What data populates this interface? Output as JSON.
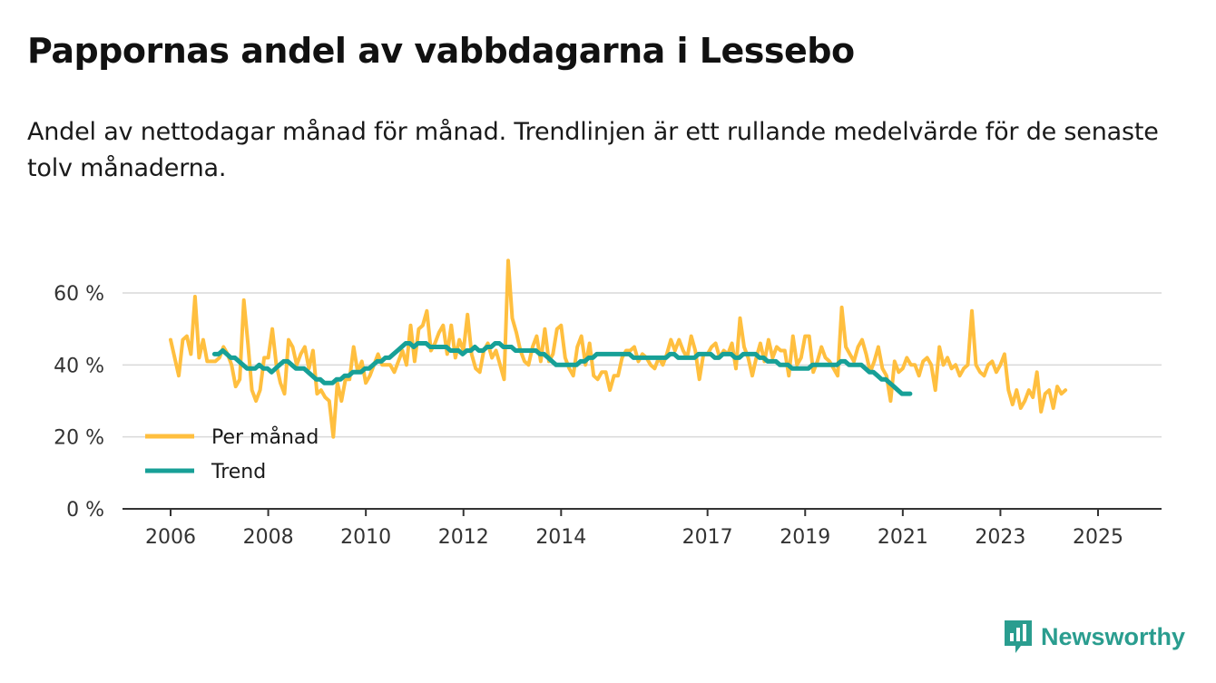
{
  "title": "Pappornas andel av vabbdagarna i Lessebo",
  "subtitle": "Andel av nettodagar månad för månad. Trendlinjen är ett rullande medelvärde för de senaste tolv månaderna.",
  "brand": "Newsworthy",
  "chart_data": {
    "type": "line",
    "title": "Pappornas andel av vabbdagarna i Lessebo",
    "xlabel": "",
    "ylabel": "",
    "ylim": [
      0,
      70
    ],
    "xlim": [
      2006.0,
      2025.5
    ],
    "y_ticks": [
      0,
      20,
      40,
      60
    ],
    "y_tick_labels": [
      "0 %",
      "20 %",
      "40 %",
      "60 %"
    ],
    "x_ticks": [
      2006,
      2008,
      2010,
      2012,
      2014,
      2017,
      2019,
      2021,
      2023,
      2025
    ],
    "x_tick_labels": [
      "2006",
      "2008",
      "2010",
      "2012",
      "2014",
      "2017",
      "2019",
      "2021",
      "2023",
      "2025"
    ],
    "grid": true,
    "legend_position": "lower-left",
    "series": [
      {
        "name": "Per månad",
        "color": "#ffbf3f",
        "x_start": 2006.0,
        "step": 0.08333,
        "values": [
          47,
          42,
          37,
          47,
          48,
          43,
          59,
          42,
          47,
          41,
          41,
          41,
          42,
          45,
          43,
          40,
          34,
          36,
          58,
          46,
          33,
          30,
          33,
          42,
          42,
          50,
          40,
          35,
          32,
          47,
          45,
          40,
          43,
          45,
          39,
          44,
          32,
          33,
          31,
          30,
          20,
          35,
          30,
          36,
          36,
          45,
          38,
          41,
          35,
          37,
          40,
          43,
          40,
          40,
          40,
          38,
          41,
          44,
          40,
          51,
          41,
          50,
          51,
          55,
          44,
          46,
          49,
          51,
          43,
          51,
          42,
          47,
          44,
          54,
          43,
          39,
          38,
          44,
          46,
          42,
          44,
          40,
          36,
          69,
          53,
          49,
          44,
          41,
          40,
          45,
          48,
          41,
          50,
          41,
          43,
          50,
          51,
          42,
          39,
          37,
          45,
          48,
          40,
          46,
          37,
          36,
          38,
          38,
          33,
          37,
          37,
          42,
          44,
          44,
          45,
          41,
          43,
          42,
          40,
          39,
          42,
          40,
          43,
          47,
          44,
          47,
          44,
          42,
          48,
          44,
          36,
          43,
          43,
          45,
          46,
          42,
          44,
          43,
          46,
          39,
          53,
          45,
          42,
          37,
          42,
          46,
          41,
          47,
          42,
          45,
          44,
          44,
          37,
          48,
          40,
          42,
          48,
          48,
          38,
          41,
          45,
          42,
          41,
          39,
          37,
          56,
          45,
          43,
          41,
          45,
          47,
          43,
          38,
          41,
          45,
          39,
          37,
          30,
          41,
          38,
          39,
          42,
          40,
          40,
          37,
          41,
          42,
          40,
          33,
          45,
          40,
          42,
          39,
          40,
          37,
          39,
          40,
          55,
          40,
          38,
          37,
          40,
          41,
          38,
          40,
          43,
          33,
          29,
          33,
          28,
          30,
          33,
          31,
          38,
          27,
          32,
          33,
          28,
          34,
          32,
          33
        ]
      },
      {
        "name": "Trend",
        "color": "#17a097",
        "x_start": 2006.9,
        "step": 0.08333,
        "values": [
          43,
          43,
          44,
          43,
          42,
          42,
          41,
          40,
          39,
          39,
          39,
          40,
          39,
          39,
          38,
          39,
          40,
          41,
          41,
          40,
          39,
          39,
          39,
          38,
          37,
          36,
          36,
          35,
          35,
          35,
          36,
          36,
          37,
          37,
          38,
          38,
          38,
          39,
          39,
          40,
          41,
          41,
          42,
          42,
          43,
          44,
          45,
          46,
          46,
          45,
          46,
          46,
          46,
          45,
          45,
          45,
          45,
          45,
          44,
          44,
          44,
          43,
          44,
          44,
          45,
          44,
          44,
          45,
          45,
          46,
          46,
          45,
          45,
          45,
          44,
          44,
          44,
          44,
          44,
          44,
          43,
          43,
          42,
          41,
          40,
          40,
          40,
          40,
          40,
          40,
          41,
          41,
          42,
          42,
          43,
          43,
          43,
          43,
          43,
          43,
          43,
          43,
          43,
          42,
          42,
          42,
          42,
          42,
          42,
          42,
          42,
          42,
          43,
          43,
          42,
          42,
          42,
          42,
          42,
          43,
          43,
          43,
          43,
          42,
          42,
          43,
          43,
          43,
          42,
          42,
          43,
          43,
          43,
          43,
          42,
          42,
          41,
          41,
          41,
          40,
          40,
          40,
          39,
          39,
          39,
          39,
          39,
          40,
          40,
          40,
          40,
          40,
          40,
          40,
          41,
          41,
          40,
          40,
          40,
          40,
          39,
          38,
          38,
          37,
          36,
          36,
          35,
          34,
          33,
          32,
          32,
          32
        ]
      }
    ]
  }
}
